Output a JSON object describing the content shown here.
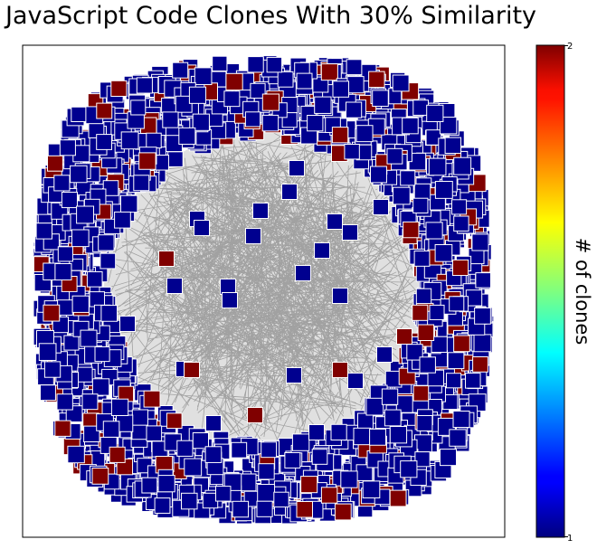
{
  "chart_data": {
    "type": "network",
    "title": "JavaScript Code Clones With 30% Similarity",
    "colorbar": {
      "label": "# of clones",
      "colormap": "jet",
      "range": [
        1,
        2
      ],
      "ticks": [
        "1",
        "2"
      ]
    },
    "node_colors": {
      "1": "#00008f",
      "2": "#800000"
    },
    "node_edge_color": "#ffffff",
    "edge_color": "#000000",
    "layout": "ring with dense edge-connected core",
    "grid": false
  }
}
